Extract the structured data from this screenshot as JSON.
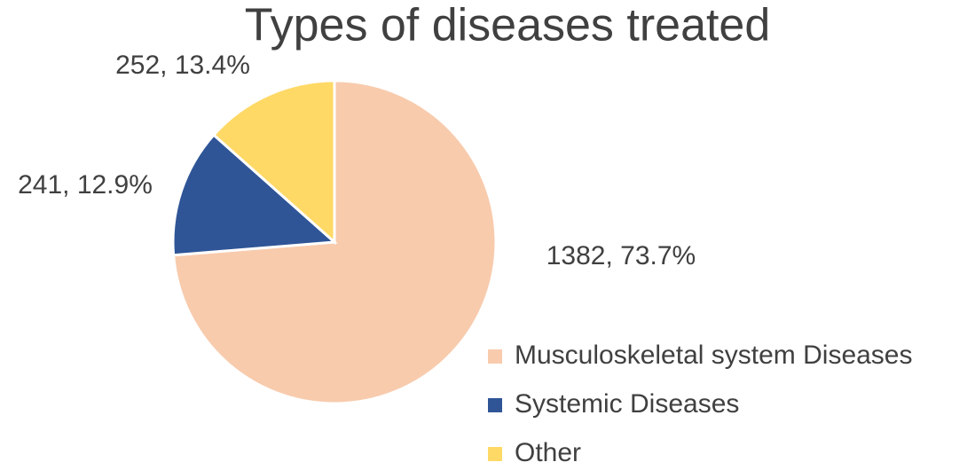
{
  "chart_data": {
    "type": "pie",
    "title": "Types of diseases treated",
    "categories": [
      "Musculoskeletal system Diseases",
      "Systemic Diseases",
      "Other"
    ],
    "values": [
      1382,
      241,
      252
    ],
    "value_labels": [
      "1382, 73.7%",
      "241, 12.9%",
      "252, 13.4%"
    ],
    "colors": [
      "#f8cbad",
      "#2f5597",
      "#ffd966"
    ],
    "legend": "right"
  }
}
